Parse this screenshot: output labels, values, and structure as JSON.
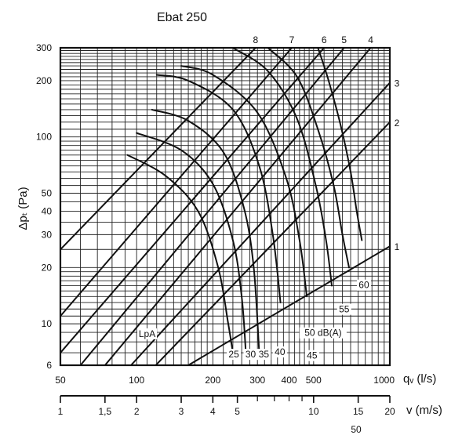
{
  "chart_data": {
    "type": "line",
    "title": "Ebat 250",
    "xlabel": "qᵥ (l/s)",
    "ylabel": "Δpₜ (Pa)",
    "vlabel": "v (m/s)",
    "x_scale": "log",
    "y_scale": "log",
    "xlim": [
      50,
      1000
    ],
    "ylim": [
      6,
      300
    ],
    "x_tick_labels": [
      {
        "value": 50,
        "label": "50"
      },
      {
        "value": 100,
        "label": "100"
      },
      {
        "value": 200,
        "label": "200"
      },
      {
        "value": 300,
        "label": "300"
      },
      {
        "value": 400,
        "label": "400"
      },
      {
        "value": 500,
        "label": "500"
      },
      {
        "value": 1000,
        "label": "1000"
      }
    ],
    "y_tick_labels": [
      {
        "value": 6,
        "label": "6"
      },
      {
        "value": 10,
        "label": "10"
      },
      {
        "value": 20,
        "label": "20"
      },
      {
        "value": 30,
        "label": "30"
      },
      {
        "value": 40,
        "label": "40"
      },
      {
        "value": 50,
        "label": "50"
      },
      {
        "value": 100,
        "label": "100"
      },
      {
        "value": 200,
        "label": "200"
      },
      {
        "value": 300,
        "label": "300"
      }
    ],
    "v_axis": {
      "q_per_v": 50,
      "tick_labels": [
        {
          "value": 1,
          "label": "1"
        },
        {
          "value": 1.5,
          "label": "1,5"
        },
        {
          "value": 2,
          "label": "2"
        },
        {
          "value": 3,
          "label": "3"
        },
        {
          "value": 4,
          "label": "4"
        },
        {
          "value": 5,
          "label": "5"
        },
        {
          "value": 10,
          "label": "10"
        },
        {
          "value": 15,
          "label": "15"
        },
        {
          "value": 20,
          "label": "20"
        }
      ],
      "minor_ticks": [
        6,
        7,
        8,
        9
      ],
      "extra_label": "50"
    },
    "fan_speed_lines": [
      {
        "name": "1",
        "points": [
          [
            160,
            6
          ],
          [
            1000,
            26
          ]
        ]
      },
      {
        "name": "2",
        "points": [
          [
            119,
            6
          ],
          [
            1000,
            120
          ]
        ]
      },
      {
        "name": "3",
        "points": [
          [
            95,
            6
          ],
          [
            1000,
            195
          ]
        ]
      },
      {
        "name": "4",
        "points": [
          [
            75,
            6
          ],
          [
            840,
            300
          ]
        ]
      },
      {
        "name": "5",
        "points": [
          [
            60,
            6
          ],
          [
            660,
            300
          ]
        ]
      },
      {
        "name": "6",
        "points": [
          [
            50,
            7
          ],
          [
            550,
            300
          ]
        ]
      },
      {
        "name": "7",
        "points": [
          [
            50,
            11
          ],
          [
            410,
            300
          ]
        ]
      },
      {
        "name": "8",
        "points": [
          [
            50,
            25
          ],
          [
            295,
            300
          ]
        ]
      }
    ],
    "sound_curves": [
      {
        "name": "25",
        "points": [
          [
            92,
            80
          ],
          [
            130,
            62
          ],
          [
            175,
            40
          ],
          [
            210,
            20
          ],
          [
            230,
            10
          ],
          [
            240,
            7
          ]
        ]
      },
      {
        "name": "30",
        "points": [
          [
            100,
            105
          ],
          [
            150,
            85
          ],
          [
            200,
            56
          ],
          [
            240,
            28
          ],
          [
            260,
            14
          ],
          [
            270,
            7
          ]
        ]
      },
      {
        "name": "35",
        "points": [
          [
            115,
            140
          ],
          [
            160,
            122
          ],
          [
            220,
            83
          ],
          [
            265,
            42
          ],
          [
            290,
            20
          ],
          [
            305,
            7
          ]
        ]
      },
      {
        "name": "40",
        "points": [
          [
            120,
            215
          ],
          [
            160,
            200
          ],
          [
            240,
            140
          ],
          [
            305,
            70
          ],
          [
            345,
            30
          ],
          [
            370,
            13
          ]
        ]
      },
      {
        "name": "45",
        "points": [
          [
            150,
            240
          ],
          [
            200,
            215
          ],
          [
            300,
            135
          ],
          [
            390,
            60
          ],
          [
            440,
            28
          ],
          [
            470,
            14
          ]
        ]
      },
      {
        "name": "50 dB(A)",
        "points": [
          [
            240,
            300
          ],
          [
            330,
            225
          ],
          [
            430,
            125
          ],
          [
            510,
            55
          ],
          [
            560,
            28
          ],
          [
            590,
            16
          ]
        ]
      },
      {
        "name": "55",
        "points": [
          [
            330,
            300
          ],
          [
            430,
            210
          ],
          [
            520,
            110
          ],
          [
            600,
            55
          ],
          [
            650,
            30
          ],
          [
            690,
            20
          ]
        ]
      },
      {
        "name": "60",
        "points": [
          [
            520,
            300
          ],
          [
            570,
            205
          ],
          [
            640,
            115
          ],
          [
            700,
            65
          ],
          [
            740,
            40
          ],
          [
            775,
            28
          ]
        ]
      }
    ],
    "curve_labels": [
      {
        "text": "LpA",
        "x": 110,
        "y": 8.5
      },
      {
        "text": "25",
        "x": 242,
        "y": 6.6
      },
      {
        "text": "30",
        "x": 282,
        "y": 6.6
      },
      {
        "text": "35",
        "x": 318,
        "y": 6.6
      },
      {
        "text": "40",
        "x": 368,
        "y": 6.8
      },
      {
        "text": "45",
        "x": 493,
        "y": 6.5
      },
      {
        "text": "50 dB(A)",
        "x": 545,
        "y": 8.6
      },
      {
        "text": "55",
        "x": 660,
        "y": 11.5
      },
      {
        "text": "60",
        "x": 790,
        "y": 15.5
      }
    ],
    "grid": true,
    "legend": "none"
  }
}
